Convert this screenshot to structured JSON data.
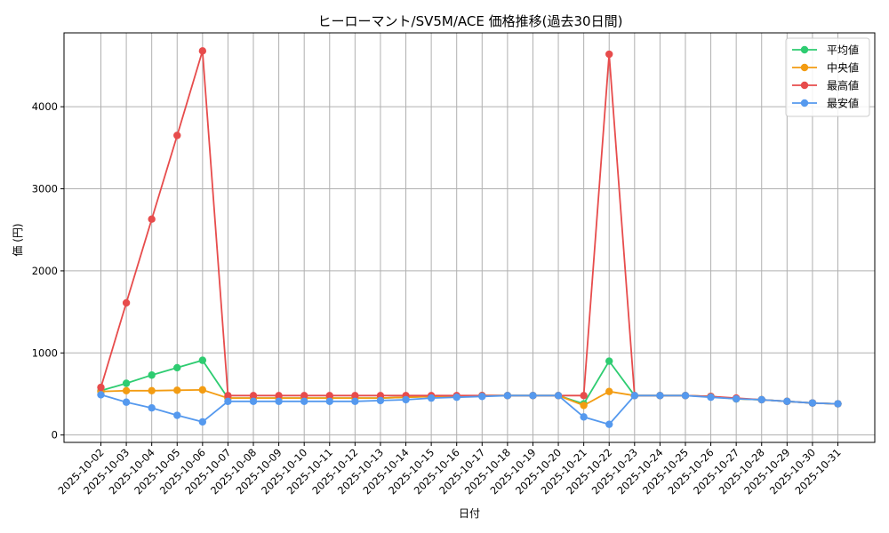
{
  "chart_data": {
    "type": "line",
    "title": "ヒーローマント/SV5M/ACE 価格推移(過去30日間)",
    "xlabel": "日付",
    "ylabel": "価 (円)",
    "ylim": [
      -90,
      4900
    ],
    "yticks": [
      0,
      1000,
      2000,
      3000,
      4000
    ],
    "grid": true,
    "legend_position": "top-right",
    "categories": [
      "2025-10-02",
      "2025-10-03",
      "2025-10-04",
      "2025-10-05",
      "2025-10-06",
      "2025-10-07",
      "2025-10-08",
      "2025-10-09",
      "2025-10-10",
      "2025-10-11",
      "2025-10-12",
      "2025-10-13",
      "2025-10-14",
      "2025-10-15",
      "2025-10-16",
      "2025-10-17",
      "2025-10-18",
      "2025-10-19",
      "2025-10-20",
      "2025-10-21",
      "2025-10-22",
      "2025-10-23",
      "2025-10-24",
      "2025-10-25",
      "2025-10-26",
      "2025-10-27",
      "2025-10-28",
      "2025-10-29",
      "2025-10-30",
      "2025-10-31"
    ],
    "series": [
      {
        "name": "平均値",
        "color": "#2ecc71",
        "values": [
          540,
          630,
          730,
          820,
          910,
          450,
          450,
          450,
          450,
          450,
          450,
          450,
          460,
          470,
          470,
          480,
          480,
          480,
          480,
          380,
          900,
          480,
          480,
          480,
          470,
          440,
          430,
          410,
          390,
          380
        ]
      },
      {
        "name": "中央値",
        "color": "#f39c12",
        "values": [
          530,
          540,
          540,
          545,
          550,
          450,
          450,
          450,
          450,
          450,
          450,
          450,
          460,
          470,
          470,
          480,
          480,
          480,
          480,
          360,
          530,
          480,
          480,
          480,
          470,
          440,
          430,
          410,
          390,
          380
        ]
      },
      {
        "name": "最高値",
        "color": "#e74c4c",
        "values": [
          580,
          1610,
          2630,
          3650,
          4680,
          480,
          480,
          480,
          480,
          480,
          480,
          480,
          480,
          480,
          480,
          480,
          480,
          480,
          480,
          480,
          4640,
          480,
          480,
          480,
          470,
          450,
          430,
          410,
          390,
          380
        ]
      },
      {
        "name": "最安値",
        "color": "#5599ee",
        "values": [
          490,
          400,
          330,
          240,
          160,
          410,
          410,
          410,
          410,
          410,
          410,
          420,
          430,
          450,
          460,
          470,
          480,
          480,
          480,
          220,
          130,
          480,
          480,
          480,
          460,
          440,
          430,
          410,
          390,
          380
        ]
      }
    ]
  }
}
